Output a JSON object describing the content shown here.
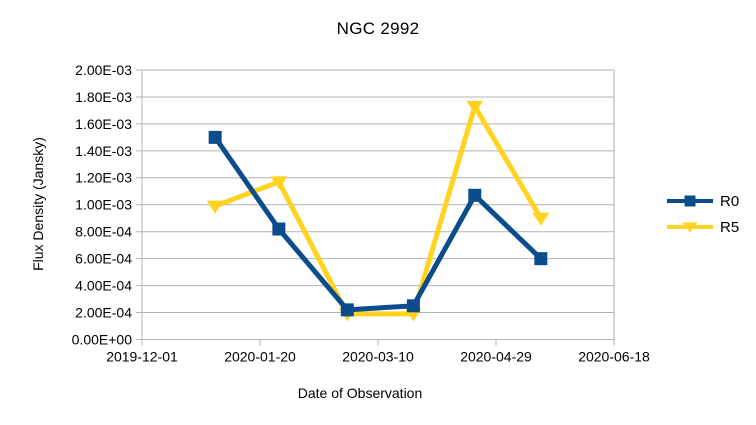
{
  "chart_data": {
    "type": "line",
    "title": "NGC 2992",
    "xlabel": "Date of Observation",
    "ylabel": "Flux Density (Jansky)",
    "x_tick_labels": [
      "2019-12-01",
      "2020-01-20",
      "2020-03-10",
      "2020-04-29",
      "2020-06-18"
    ],
    "y_tick_labels": [
      "0.00E+00",
      "2.00E-04",
      "4.00E-04",
      "6.00E-04",
      "8.00E-04",
      "1.00E-03",
      "1.20E-03",
      "1.40E-03",
      "1.60E-03",
      "1.80E-03",
      "2.00E-03"
    ],
    "x_range": [
      "2019-12-01",
      "2020-06-18"
    ],
    "ylim": [
      0,
      0.002
    ],
    "grid": "horizontal",
    "grid_color": "#b3b3b3",
    "legend_position": "right",
    "series": [
      {
        "name": "R0",
        "color": "#0b4d8c",
        "marker": "square",
        "x": [
          "2020-01-01",
          "2020-01-28",
          "2020-02-26",
          "2020-03-25",
          "2020-04-20",
          "2020-05-18"
        ],
        "values": [
          0.0015,
          0.00082,
          0.00022,
          0.00025,
          0.00107,
          0.0006
        ]
      },
      {
        "name": "R5",
        "color": "#ffd320",
        "marker": "triangle-down",
        "x": [
          "2020-01-01",
          "2020-01-28",
          "2020-02-26",
          "2020-03-25",
          "2020-04-20",
          "2020-05-18"
        ],
        "values": [
          0.00099,
          0.00117,
          0.00019,
          0.00019,
          0.00173,
          0.0009
        ]
      }
    ]
  }
}
